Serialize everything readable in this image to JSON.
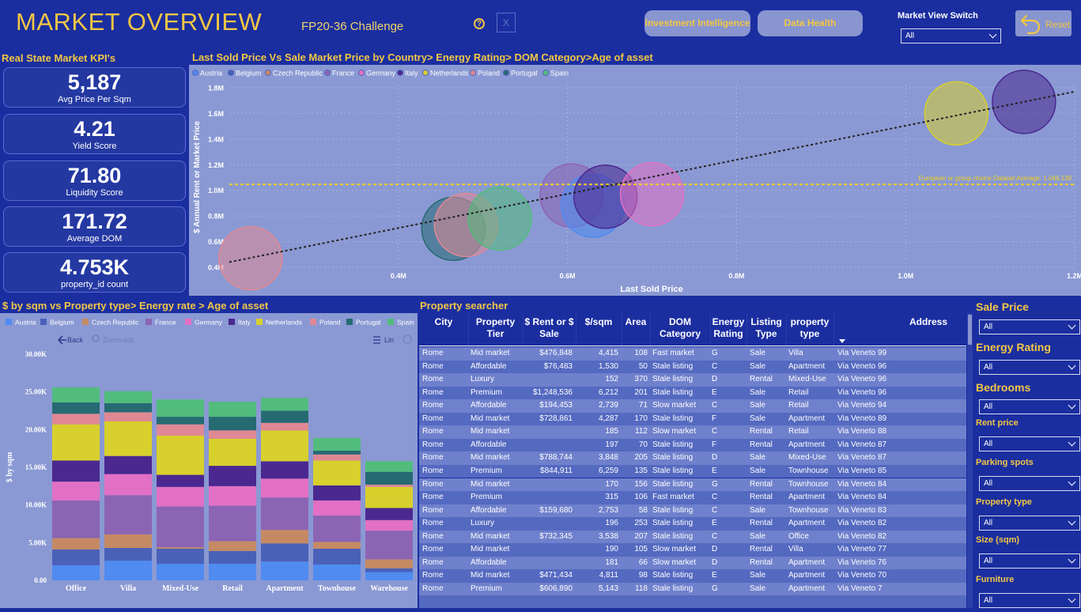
{
  "header": {
    "title": "MARKET OVERVIEW",
    "subtitle": "FP20-36 Challenge",
    "help_icon": "?",
    "close_icon": "X",
    "investment_btn": "Investment Intelligence",
    "data_health_btn": "Data Health",
    "market_view_label": "Market View Switch",
    "market_view_value": "All",
    "reset_label": "Reset"
  },
  "kpi": {
    "title": "Real State Market KPI's",
    "cards": [
      {
        "value": "5,187",
        "label": "Avg Price Per Sqm"
      },
      {
        "value": "4.21",
        "label": "Yield Score"
      },
      {
        "value": "71.80",
        "label": "Liquidity Score"
      },
      {
        "value": "171.72",
        "label": "Average DOM"
      },
      {
        "value": "4.753K",
        "label": "property_id count"
      }
    ]
  },
  "scatter": {
    "title": "Last Sold Price Vs Sale Market Price by Country> Energy Rating> DOM Category>Age of asset",
    "avg_label": "European or group choice Dataset Average: 1,046,139"
  },
  "bar": {
    "title": "$ by sqm vs Property type> Energy rate > Age of asset",
    "back_label": "Back",
    "zoom_label": "Zoom-out",
    "lin_label": "Lin"
  },
  "colors": {
    "Austria": "#4f8bf0",
    "Belgium": "#4a61b8",
    "Czech Republic": "#c58a64",
    "France": "#8c64b4",
    "Germany": "#e270c4",
    "Italy": "#4a2890",
    "Netherlands": "#d8d02c",
    "Poland": "#e08894",
    "Portugal": "#266a72",
    "Spain": "#52bc7c"
  },
  "chart_data": [
    {
      "type": "scatter",
      "title": "Last Sold Price Vs Sale Market Price by Country> Energy Rating> DOM Category>Age of asset",
      "xlabel": "Last Sold Price",
      "ylabel": "$ Annual Rent or Market Price",
      "xlim": [
        0.2,
        1.2
      ],
      "ylim": [
        0.4,
        1.8
      ],
      "xticks": [
        "0.4M",
        "0.6M",
        "0.8M",
        "1.0M",
        "1.2M"
      ],
      "yticks": [
        "0.4M",
        "0.6M",
        "0.8M",
        "1.0M",
        "1.2M",
        "1.4M",
        "1.6M",
        "1.8M"
      ],
      "legend": [
        "Austria",
        "Belgium",
        "Czech Republic",
        "France",
        "Germany",
        "Italy",
        "Netherlands",
        "Poland",
        "Portugal",
        "Spain"
      ],
      "reference_line": {
        "y": 1.046139,
        "label": "European or group choice Dataset Average: 1,046,139"
      },
      "trend": [
        {
          "x": 0.2,
          "y": 0.44
        },
        {
          "x": 1.2,
          "y": 1.77
        }
      ],
      "points": [
        {
          "series": "Poland",
          "x": 0.225,
          "y": 0.47,
          "r": 1.0
        },
        {
          "series": "Portugal",
          "x": 0.465,
          "y": 0.7,
          "r": 1.0
        },
        {
          "series": "Poland",
          "x": 0.48,
          "y": 0.73,
          "r": 1.0
        },
        {
          "series": "Spain",
          "x": 0.52,
          "y": 0.78,
          "r": 1.0
        },
        {
          "series": "France",
          "x": 0.605,
          "y": 0.96,
          "r": 1.0
        },
        {
          "series": "Austria",
          "x": 0.63,
          "y": 0.88,
          "r": 1.0
        },
        {
          "series": "Italy",
          "x": 0.645,
          "y": 0.95,
          "r": 1.0
        },
        {
          "series": "Germany",
          "x": 0.7,
          "y": 0.97,
          "r": 1.0
        },
        {
          "series": "Netherlands",
          "x": 1.06,
          "y": 1.6,
          "r": 1.0
        },
        {
          "series": "Italy",
          "x": 1.14,
          "y": 1.69,
          "r": 1.0
        }
      ]
    },
    {
      "type": "bar",
      "title": "$ by sqm vs Property type> Energy rate > Age of asset",
      "ylabel": "$ by sqm",
      "ylim": [
        0,
        30000
      ],
      "yticks": [
        "0.00",
        "5.00K",
        "10.00K",
        "15.00K",
        "20.00K",
        "25.00K",
        "30.00K"
      ],
      "categories": [
        "Office",
        "Villa",
        "Mixed-Use",
        "Retail",
        "Apartment",
        "Townhouse",
        "Warehouse"
      ],
      "series": [
        {
          "name": "Austria",
          "values": [
            2000,
            2600,
            2200,
            2200,
            2500,
            2100,
            1100
          ]
        },
        {
          "name": "Belgium",
          "values": [
            2100,
            1700,
            2000,
            1700,
            2400,
            2100,
            500
          ]
        },
        {
          "name": "Czech Republic",
          "values": [
            1500,
            1800,
            200,
            1300,
            1800,
            900,
            1200
          ]
        },
        {
          "name": "France",
          "values": [
            5000,
            5200,
            5400,
            4700,
            4300,
            3500,
            3800
          ]
        },
        {
          "name": "Germany",
          "values": [
            2500,
            2800,
            2600,
            2600,
            2500,
            2000,
            1400
          ]
        },
        {
          "name": "Italy",
          "values": [
            2800,
            2400,
            1600,
            2700,
            2300,
            2000,
            1600
          ]
        },
        {
          "name": "Netherlands",
          "values": [
            4800,
            4600,
            5200,
            3600,
            4100,
            3300,
            2800
          ]
        },
        {
          "name": "Poland",
          "values": [
            1400,
            1200,
            1500,
            1100,
            1000,
            800,
            300
          ]
        },
        {
          "name": "Portugal",
          "values": [
            1500,
            1200,
            1000,
            1800,
            1600,
            500,
            1700
          ]
        },
        {
          "name": "Spain",
          "values": [
            2000,
            1600,
            2300,
            2000,
            1700,
            1700,
            1400
          ]
        }
      ]
    }
  ],
  "table": {
    "headers": [
      "City",
      "Property Tier",
      "$ Rent or $ Sale",
      "$/sqm",
      "Area",
      "DOM Category",
      "Energy Rating",
      "Listing Type",
      "property type",
      "Address"
    ],
    "rows": [
      [
        "Rome",
        "Mid market",
        "$476,848",
        "4,415",
        "108",
        "Fast market",
        "G",
        "Sale",
        "Villa",
        "Via Veneto 99"
      ],
      [
        "Rome",
        "Affordable",
        "$76,483",
        "1,530",
        "50",
        "Stale listing",
        "C",
        "Sale",
        "Apartment",
        "Via Veneto 96"
      ],
      [
        "Rome",
        "Luxury",
        "",
        "152",
        "370",
        "Stale listing",
        "D",
        "Rental",
        "Mixed-Use",
        "Via Veneto 96"
      ],
      [
        "Rome",
        "Premium",
        "$1,248,536",
        "6,212",
        "201",
        "Stale listing",
        "E",
        "Sale",
        "Retail",
        "Via Veneto 96"
      ],
      [
        "Rome",
        "Affordable",
        "$194,453",
        "2,739",
        "71",
        "Slow market",
        "C",
        "Sale",
        "Retail",
        "Via Veneto 94"
      ],
      [
        "Rome",
        "Mid market",
        "$728,861",
        "4,287",
        "170",
        "Stale listing",
        "F",
        "Sale",
        "Apartment",
        "Via Veneto 89"
      ],
      [
        "Rome",
        "Mid market",
        "",
        "185",
        "112",
        "Slow market",
        "C",
        "Rental",
        "Retail",
        "Via Veneto 88"
      ],
      [
        "Rome",
        "Affordable",
        "",
        "197",
        "70",
        "Stale listing",
        "F",
        "Rental",
        "Apartment",
        "Via Veneto 87"
      ],
      [
        "Rome",
        "Mid market",
        "$788,744",
        "3,848",
        "205",
        "Stale listing",
        "D",
        "Sale",
        "Mixed-Use",
        "Via Veneto 87"
      ],
      [
        "Rome",
        "Premium",
        "$844,911",
        "6,259",
        "135",
        "Stale listing",
        "E",
        "Sale",
        "Townhouse",
        "Via Veneto 85"
      ],
      [
        "Rome",
        "Mid market",
        "",
        "170",
        "156",
        "Stale listing",
        "G",
        "Rental",
        "Townhouse",
        "Via Veneto 84"
      ],
      [
        "Rome",
        "Premium",
        "",
        "315",
        "106",
        "Fast market",
        "C",
        "Rental",
        "Apartment",
        "Via Veneto 84"
      ],
      [
        "Rome",
        "Affordable",
        "$159,680",
        "2,753",
        "58",
        "Stale listing",
        "C",
        "Sale",
        "Townhouse",
        "Via Veneto 83"
      ],
      [
        "Rome",
        "Luxury",
        "",
        "196",
        "253",
        "Stale listing",
        "E",
        "Rental",
        "Apartment",
        "Via Veneto 82"
      ],
      [
        "Rome",
        "Mid market",
        "$732,345",
        "3,538",
        "207",
        "Stale listing",
        "C",
        "Sale",
        "Office",
        "Via Veneto 82"
      ],
      [
        "Rome",
        "Mid market",
        "",
        "190",
        "105",
        "Slow market",
        "D",
        "Rental",
        "Villa",
        "Via Veneto 77"
      ],
      [
        "Rome",
        "Affordable",
        "",
        "181",
        "66",
        "Slow market",
        "D",
        "Rental",
        "Apartment",
        "Via Veneto 76"
      ],
      [
        "Rome",
        "Mid market",
        "$471,434",
        "4,811",
        "98",
        "Stale listing",
        "E",
        "Sale",
        "Apartment",
        "Via Veneto 70"
      ],
      [
        "Rome",
        "Premium",
        "$606,890",
        "5,143",
        "118",
        "Stale listing",
        "G",
        "Sale",
        "Apartment",
        "Via Veneto 7"
      ]
    ]
  },
  "filters": [
    {
      "label": "Sale Price",
      "value": "All"
    },
    {
      "label": "Energy Rating",
      "value": "All"
    },
    {
      "label": "Bedrooms",
      "value": "All"
    },
    {
      "label": "Rent price",
      "value": "All"
    },
    {
      "label": "Parking spots",
      "value": "All"
    },
    {
      "label": "Property type",
      "value": "All"
    },
    {
      "label": "Size (sqm)",
      "value": "All"
    },
    {
      "label": "Furniture",
      "value": "All"
    }
  ]
}
